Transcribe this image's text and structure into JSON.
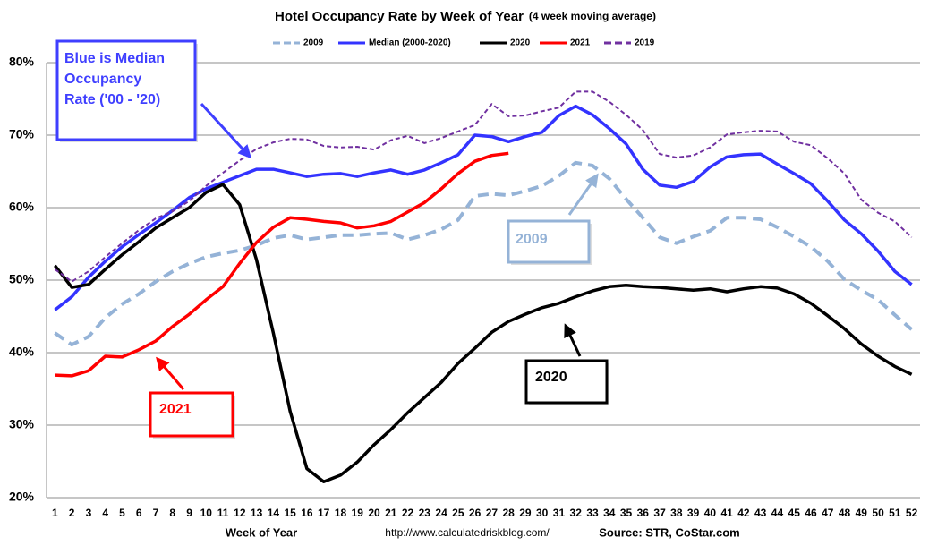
{
  "chart_data": {
    "type": "line",
    "title": "Hotel Occupancy Rate by  Week of Year",
    "subtitle": "(4 week moving average)",
    "x_label": "Week of Year",
    "url": "http://www.calculatedriskblog.com/",
    "source": "Source: STR, CoStar.com",
    "categories": [
      1,
      2,
      3,
      4,
      5,
      6,
      7,
      8,
      9,
      10,
      11,
      12,
      13,
      14,
      15,
      16,
      17,
      18,
      19,
      20,
      21,
      22,
      23,
      24,
      25,
      26,
      27,
      28,
      29,
      30,
      31,
      32,
      33,
      34,
      35,
      36,
      37,
      38,
      39,
      40,
      41,
      42,
      43,
      44,
      45,
      46,
      47,
      48,
      49,
      50,
      51,
      52
    ],
    "ylim": [
      20,
      80
    ],
    "yticks": [
      {
        "value": 20,
        "label": "20%"
      },
      {
        "value": 30,
        "label": "30%"
      },
      {
        "value": 40,
        "label": "40%"
      },
      {
        "value": 50,
        "label": "50%"
      },
      {
        "value": 60,
        "label": "60%"
      },
      {
        "value": 70,
        "label": "70%"
      },
      {
        "value": 80,
        "label": "80%"
      }
    ],
    "grid": true,
    "legend": "top",
    "series": [
      {
        "name": "2009",
        "color": "#95b3d7",
        "dashed": true,
        "values": [
          42.7,
          41.1,
          42.2,
          44.8,
          46.7,
          48.1,
          49.8,
          51.2,
          52.3,
          53.2,
          53.7,
          54.1,
          54.8,
          55.8,
          56.2,
          55.6,
          55.9,
          56.2,
          56.2,
          56.4,
          56.5,
          55.6,
          56.2,
          57.0,
          58.3,
          61.6,
          61.9,
          61.7,
          62.3,
          63.0,
          64.4,
          66.2,
          65.8,
          64.0,
          61.2,
          58.6,
          55.9,
          55.1,
          56.0,
          56.8,
          58.6,
          58.6,
          58.4,
          57.3,
          56.0,
          54.6,
          52.6,
          50.1,
          48.6,
          47.3,
          45.2,
          43.2
        ]
      },
      {
        "name": "Median (2000-2020)",
        "color": "#3333ff",
        "dashed": false,
        "values": [
          45.9,
          47.7,
          50.4,
          52.6,
          54.6,
          56.3,
          57.9,
          59.6,
          61.4,
          62.6,
          63.5,
          64.4,
          65.3,
          65.3,
          64.8,
          64.3,
          64.6,
          64.7,
          64.3,
          64.8,
          65.2,
          64.6,
          65.2,
          66.2,
          67.3,
          70.0,
          69.8,
          69.1,
          69.8,
          70.4,
          72.7,
          74.0,
          72.8,
          70.9,
          68.8,
          65.3,
          63.1,
          62.8,
          63.6,
          65.6,
          67.0,
          67.3,
          67.4,
          66.0,
          64.7,
          63.3,
          60.9,
          58.3,
          56.4,
          54.0,
          51.2,
          49.4
        ]
      },
      {
        "name": "2020",
        "color": "#000000",
        "dashed": false,
        "values": [
          52.0,
          49.0,
          49.4,
          51.5,
          53.5,
          55.3,
          57.2,
          58.6,
          60.0,
          62.1,
          63.2,
          60.4,
          52.8,
          42.7,
          31.9,
          24.0,
          22.2,
          23.1,
          24.9,
          27.3,
          29.4,
          31.7,
          33.8,
          35.9,
          38.5,
          40.6,
          42.8,
          44.3,
          45.3,
          46.2,
          46.8,
          47.7,
          48.5,
          49.1,
          49.3,
          49.1,
          49.0,
          48.8,
          48.6,
          48.8,
          48.4,
          48.8,
          49.1,
          48.9,
          48.1,
          46.8,
          45.1,
          43.3,
          41.2,
          39.5,
          38.1,
          37.0
        ]
      },
      {
        "name": "2021",
        "color": "#ff0000",
        "dashed": false,
        "values": [
          36.9,
          36.8,
          37.5,
          39.5,
          39.4,
          40.4,
          41.6,
          43.6,
          45.3,
          47.3,
          49.1,
          52.3,
          55.2,
          57.3,
          58.6,
          58.4,
          58.1,
          57.9,
          57.2,
          57.5,
          58.1,
          59.4,
          60.7,
          62.6,
          64.7,
          66.4,
          67.2,
          67.5,
          null,
          null,
          null,
          null,
          null,
          null,
          null,
          null,
          null,
          null,
          null,
          null,
          null,
          null,
          null,
          null,
          null,
          null,
          null,
          null,
          null,
          null,
          null,
          null
        ]
      },
      {
        "name": "2019",
        "color": "#7030a0",
        "dashed": true,
        "values": [
          51.5,
          49.8,
          51.2,
          53.2,
          55.1,
          56.9,
          58.5,
          59.5,
          60.9,
          63.0,
          64.8,
          66.5,
          68.1,
          69.0,
          69.5,
          69.4,
          68.5,
          68.3,
          68.4,
          68.0,
          69.3,
          69.9,
          68.9,
          69.6,
          70.5,
          71.4,
          74.3,
          72.6,
          72.7,
          73.3,
          73.8,
          76.0,
          76.0,
          74.6,
          72.8,
          70.7,
          67.4,
          66.9,
          67.2,
          68.3,
          70.1,
          70.4,
          70.6,
          70.5,
          69.1,
          68.6,
          66.8,
          64.7,
          61.1,
          59.3,
          58.1,
          55.9
        ]
      }
    ],
    "annotations": [
      {
        "lines": [
          "Blue is Median",
          "Occupancy",
          "Rate ('00 - '20)"
        ],
        "color": "#3f3fff"
      },
      {
        "lines": [
          "2009"
        ],
        "color": "#95b3d7"
      },
      {
        "lines": [
          "2020"
        ],
        "color": "#000000"
      },
      {
        "lines": [
          "2021"
        ],
        "color": "#ff0000"
      }
    ]
  }
}
